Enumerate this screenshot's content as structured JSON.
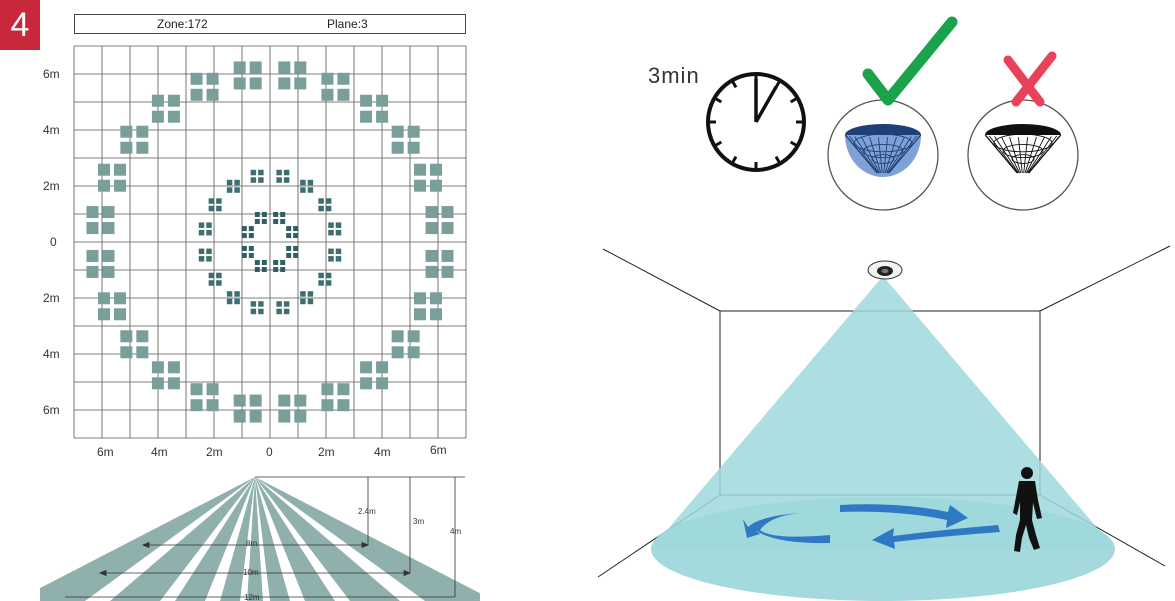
{
  "badge": "4",
  "header": {
    "zone": "Zone:172",
    "plane": "Plane:3"
  },
  "grid": {
    "y_labels": [
      "6m",
      "4m",
      "2m",
      "0",
      "2m",
      "4m",
      "6m"
    ],
    "x_labels": [
      "6m",
      "4m",
      "2m",
      "0",
      "2m",
      "4m",
      "6m"
    ]
  },
  "side_view": {
    "heights": [
      "2.4m",
      "3m",
      "4m"
    ],
    "widths": [
      "8m",
      "10m",
      "12m"
    ]
  },
  "timer_label": "3min",
  "colors": {
    "badge": "#c8283c",
    "zone_outer": "#7a9e9a",
    "zone_inner": "#2f5f63",
    "beam": "#8fb0ac",
    "cone": "#9fd8dc",
    "check": "#1aa34a",
    "cross": "#e8435a",
    "arrow": "#2f79c4"
  }
}
